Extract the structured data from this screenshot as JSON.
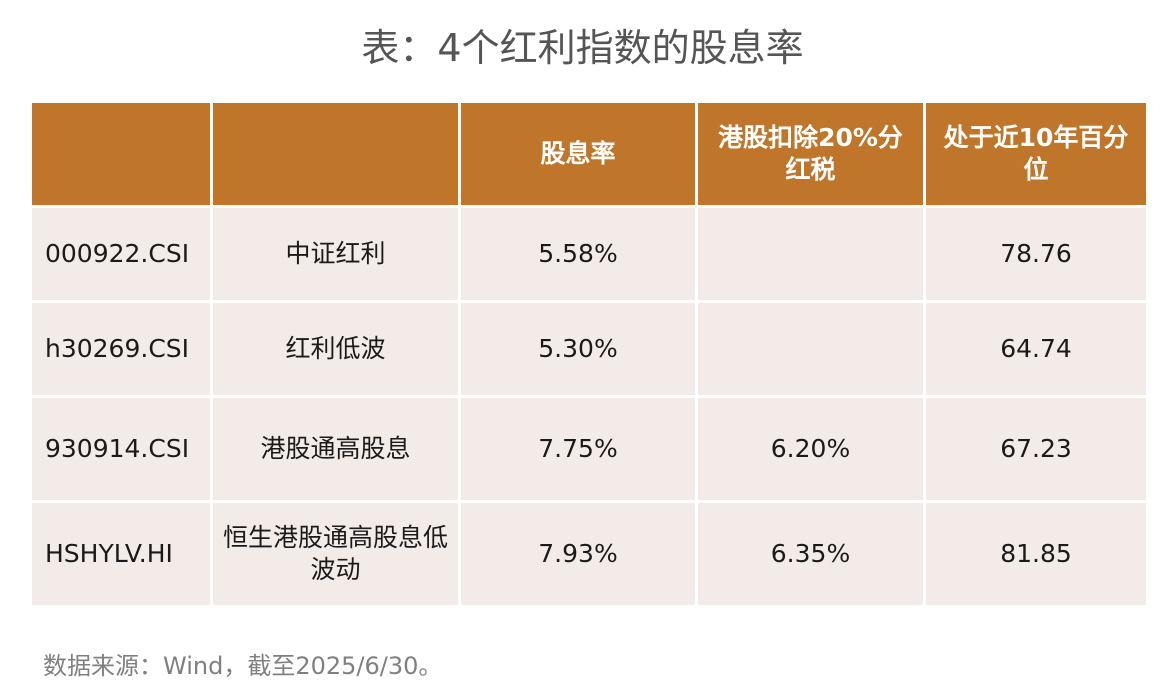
{
  "title": "表：4个红利指数的股息率",
  "table": {
    "headers": [
      "",
      "",
      "股息率",
      "港股扣除20%分红税",
      "处于近10年百分位"
    ],
    "rows": [
      {
        "code": "000922.CSI",
        "name": "中证红利",
        "dividend_yield": "5.58%",
        "after_tax": "",
        "percentile": "78.76"
      },
      {
        "code": "h30269.CSI",
        "name": "红利低波",
        "dividend_yield": "5.30%",
        "after_tax": "",
        "percentile": "64.74"
      },
      {
        "code": "930914.CSI",
        "name": "港股通高股息",
        "dividend_yield": "7.75%",
        "after_tax": "6.20%",
        "percentile": "67.23"
      },
      {
        "code": "HSHYLV.HI",
        "name": "恒生港股通高股息低波动",
        "dividend_yield": "7.93%",
        "after_tax": "6.35%",
        "percentile": "81.85"
      }
    ]
  },
  "note": "数据来源：Wind，截至2025/6/30。",
  "colors": {
    "header_bg": "#c0762a",
    "cell_bg": "#f3ebe8",
    "title_text": "#555555",
    "note_text": "#808080"
  }
}
